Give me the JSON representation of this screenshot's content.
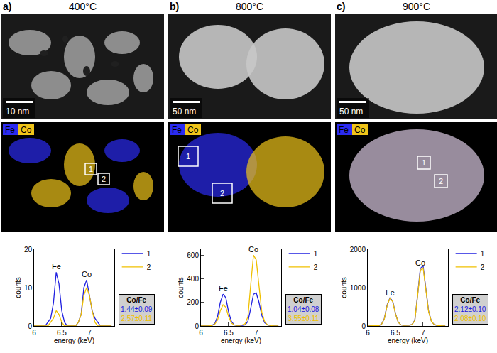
{
  "panels": [
    {
      "letter": "a)",
      "title": "400°C",
      "scale_bar": "10 nm",
      "map": {
        "elements": [
          {
            "name": "Fe",
            "color": "#2b2bf0"
          },
          {
            "name": "Co",
            "color": "#f0c419"
          }
        ],
        "regions": [
          "1",
          "2"
        ]
      }
    },
    {
      "letter": "b)",
      "title": "800°C",
      "scale_bar": "50 nm",
      "map": {
        "elements": [
          {
            "name": "Fe",
            "color": "#2b2bf0"
          },
          {
            "name": "Co",
            "color": "#f0c419"
          }
        ],
        "regions": [
          "1",
          "2"
        ]
      }
    },
    {
      "letter": "c)",
      "title": "900°C",
      "scale_bar": "50 nm",
      "map": {
        "elements": [
          {
            "name": "Fe",
            "color": "#2b2bf0"
          },
          {
            "name": "Co",
            "color": "#f0c419"
          }
        ],
        "regions": [
          "1",
          "2"
        ]
      }
    }
  ],
  "chart_data": [
    {
      "type": "line",
      "xlabel": "energy (keV)",
      "ylabel": "counts",
      "x": [
        6.0,
        6.05,
        6.1,
        6.15,
        6.2,
        6.25,
        6.3,
        6.35,
        6.4,
        6.45,
        6.5,
        6.55,
        6.6,
        6.65,
        6.7,
        6.75,
        6.8,
        6.85,
        6.9,
        6.95,
        7.0,
        7.05,
        7.1,
        7.15,
        7.2,
        7.25,
        7.3,
        7.35,
        7.4
      ],
      "xlim": [
        6,
        7.45
      ],
      "xticks": [
        6,
        6.5,
        7
      ],
      "ylim": [
        0,
        20
      ],
      "yticks": [
        0,
        10,
        20
      ],
      "series": [
        {
          "name": "1",
          "color": "#2020e0",
          "values": [
            0,
            0,
            0,
            0,
            0,
            1,
            2,
            6,
            14,
            11,
            4,
            1,
            0,
            0,
            0,
            0,
            1,
            3,
            10,
            12,
            8,
            4,
            2,
            1,
            0,
            0,
            0,
            0,
            0
          ]
        },
        {
          "name": "2",
          "color": "#f0c000",
          "values": [
            0,
            0,
            0,
            0,
            0,
            0,
            1,
            2,
            4,
            3,
            1,
            0,
            0,
            0,
            0,
            0,
            1,
            3,
            8,
            10,
            8,
            4,
            1,
            0,
            0,
            0,
            0,
            0,
            0
          ]
        }
      ],
      "annotations": [
        {
          "text": "Fe",
          "x": 6.4
        },
        {
          "text": "Co",
          "x": 6.95
        }
      ],
      "ratio_box": {
        "title": "Co/Fe",
        "values": [
          "1.44±0.09",
          "2.57±0.11"
        ]
      },
      "legend": "right"
    },
    {
      "type": "line",
      "xlabel": "energy (keV)",
      "ylabel": "counts",
      "x": [
        6.0,
        6.05,
        6.1,
        6.15,
        6.2,
        6.25,
        6.3,
        6.35,
        6.4,
        6.45,
        6.5,
        6.55,
        6.6,
        6.65,
        6.7,
        6.75,
        6.8,
        6.85,
        6.9,
        6.95,
        7.0,
        7.05,
        7.1,
        7.15,
        7.2,
        7.25,
        7.3,
        7.35,
        7.4
      ],
      "xlim": [
        6,
        7.45
      ],
      "xticks": [
        6,
        6.5,
        7
      ],
      "ylim": [
        0,
        650
      ],
      "yticks": [
        0,
        200,
        400,
        600
      ],
      "series": [
        {
          "name": "1",
          "color": "#2020e0",
          "values": [
            0,
            0,
            0,
            0,
            5,
            20,
            80,
            200,
            270,
            240,
            120,
            40,
            10,
            5,
            5,
            5,
            10,
            40,
            150,
            270,
            280,
            200,
            90,
            30,
            10,
            5,
            0,
            0,
            0
          ]
        },
        {
          "name": "2",
          "color": "#f0c000",
          "values": [
            0,
            0,
            0,
            0,
            5,
            15,
            50,
            130,
            180,
            160,
            80,
            25,
            10,
            5,
            5,
            10,
            20,
            80,
            350,
            600,
            560,
            330,
            120,
            40,
            10,
            5,
            0,
            0,
            0
          ]
        }
      ],
      "annotations": [
        {
          "text": "Fe",
          "x": 6.4
        },
        {
          "text": "Co",
          "x": 6.95
        }
      ],
      "ratio_box": {
        "title": "Co/Fe",
        "values": [
          "1.04±0.08",
          "3.55±0.11"
        ]
      },
      "legend": "right"
    },
    {
      "type": "line",
      "xlabel": "energy (keV)",
      "ylabel": "counts",
      "x": [
        6.0,
        6.05,
        6.1,
        6.15,
        6.2,
        6.25,
        6.3,
        6.35,
        6.4,
        6.45,
        6.5,
        6.55,
        6.6,
        6.65,
        6.7,
        6.75,
        6.8,
        6.85,
        6.9,
        6.95,
        7.0,
        7.05,
        7.1,
        7.15,
        7.2,
        7.25,
        7.3,
        7.35,
        7.4
      ],
      "xlim": [
        6,
        7.45
      ],
      "xticks": [
        6,
        6.5,
        7
      ],
      "ylim": [
        0,
        2000
      ],
      "yticks": [
        0,
        1000,
        2000
      ],
      "series": [
        {
          "name": "1",
          "color": "#2020e0",
          "values": [
            0,
            0,
            0,
            0,
            10,
            50,
            200,
            550,
            730,
            650,
            330,
            100,
            30,
            15,
            15,
            20,
            40,
            150,
            800,
            1500,
            1570,
            1000,
            380,
            120,
            40,
            15,
            5,
            0,
            0
          ]
        },
        {
          "name": "2",
          "color": "#f0c000",
          "values": [
            0,
            0,
            0,
            0,
            10,
            50,
            190,
            540,
            720,
            640,
            320,
            100,
            30,
            15,
            15,
            20,
            40,
            140,
            780,
            1450,
            1520,
            980,
            370,
            120,
            40,
            15,
            5,
            0,
            0
          ]
        }
      ],
      "annotations": [
        {
          "text": "Fe",
          "x": 6.4
        },
        {
          "text": "Co",
          "x": 6.95
        }
      ],
      "ratio_box": {
        "title": "Co/Fe",
        "values": [
          "2.12±0.10",
          "2.08±0.10"
        ]
      },
      "legend": "right"
    }
  ]
}
